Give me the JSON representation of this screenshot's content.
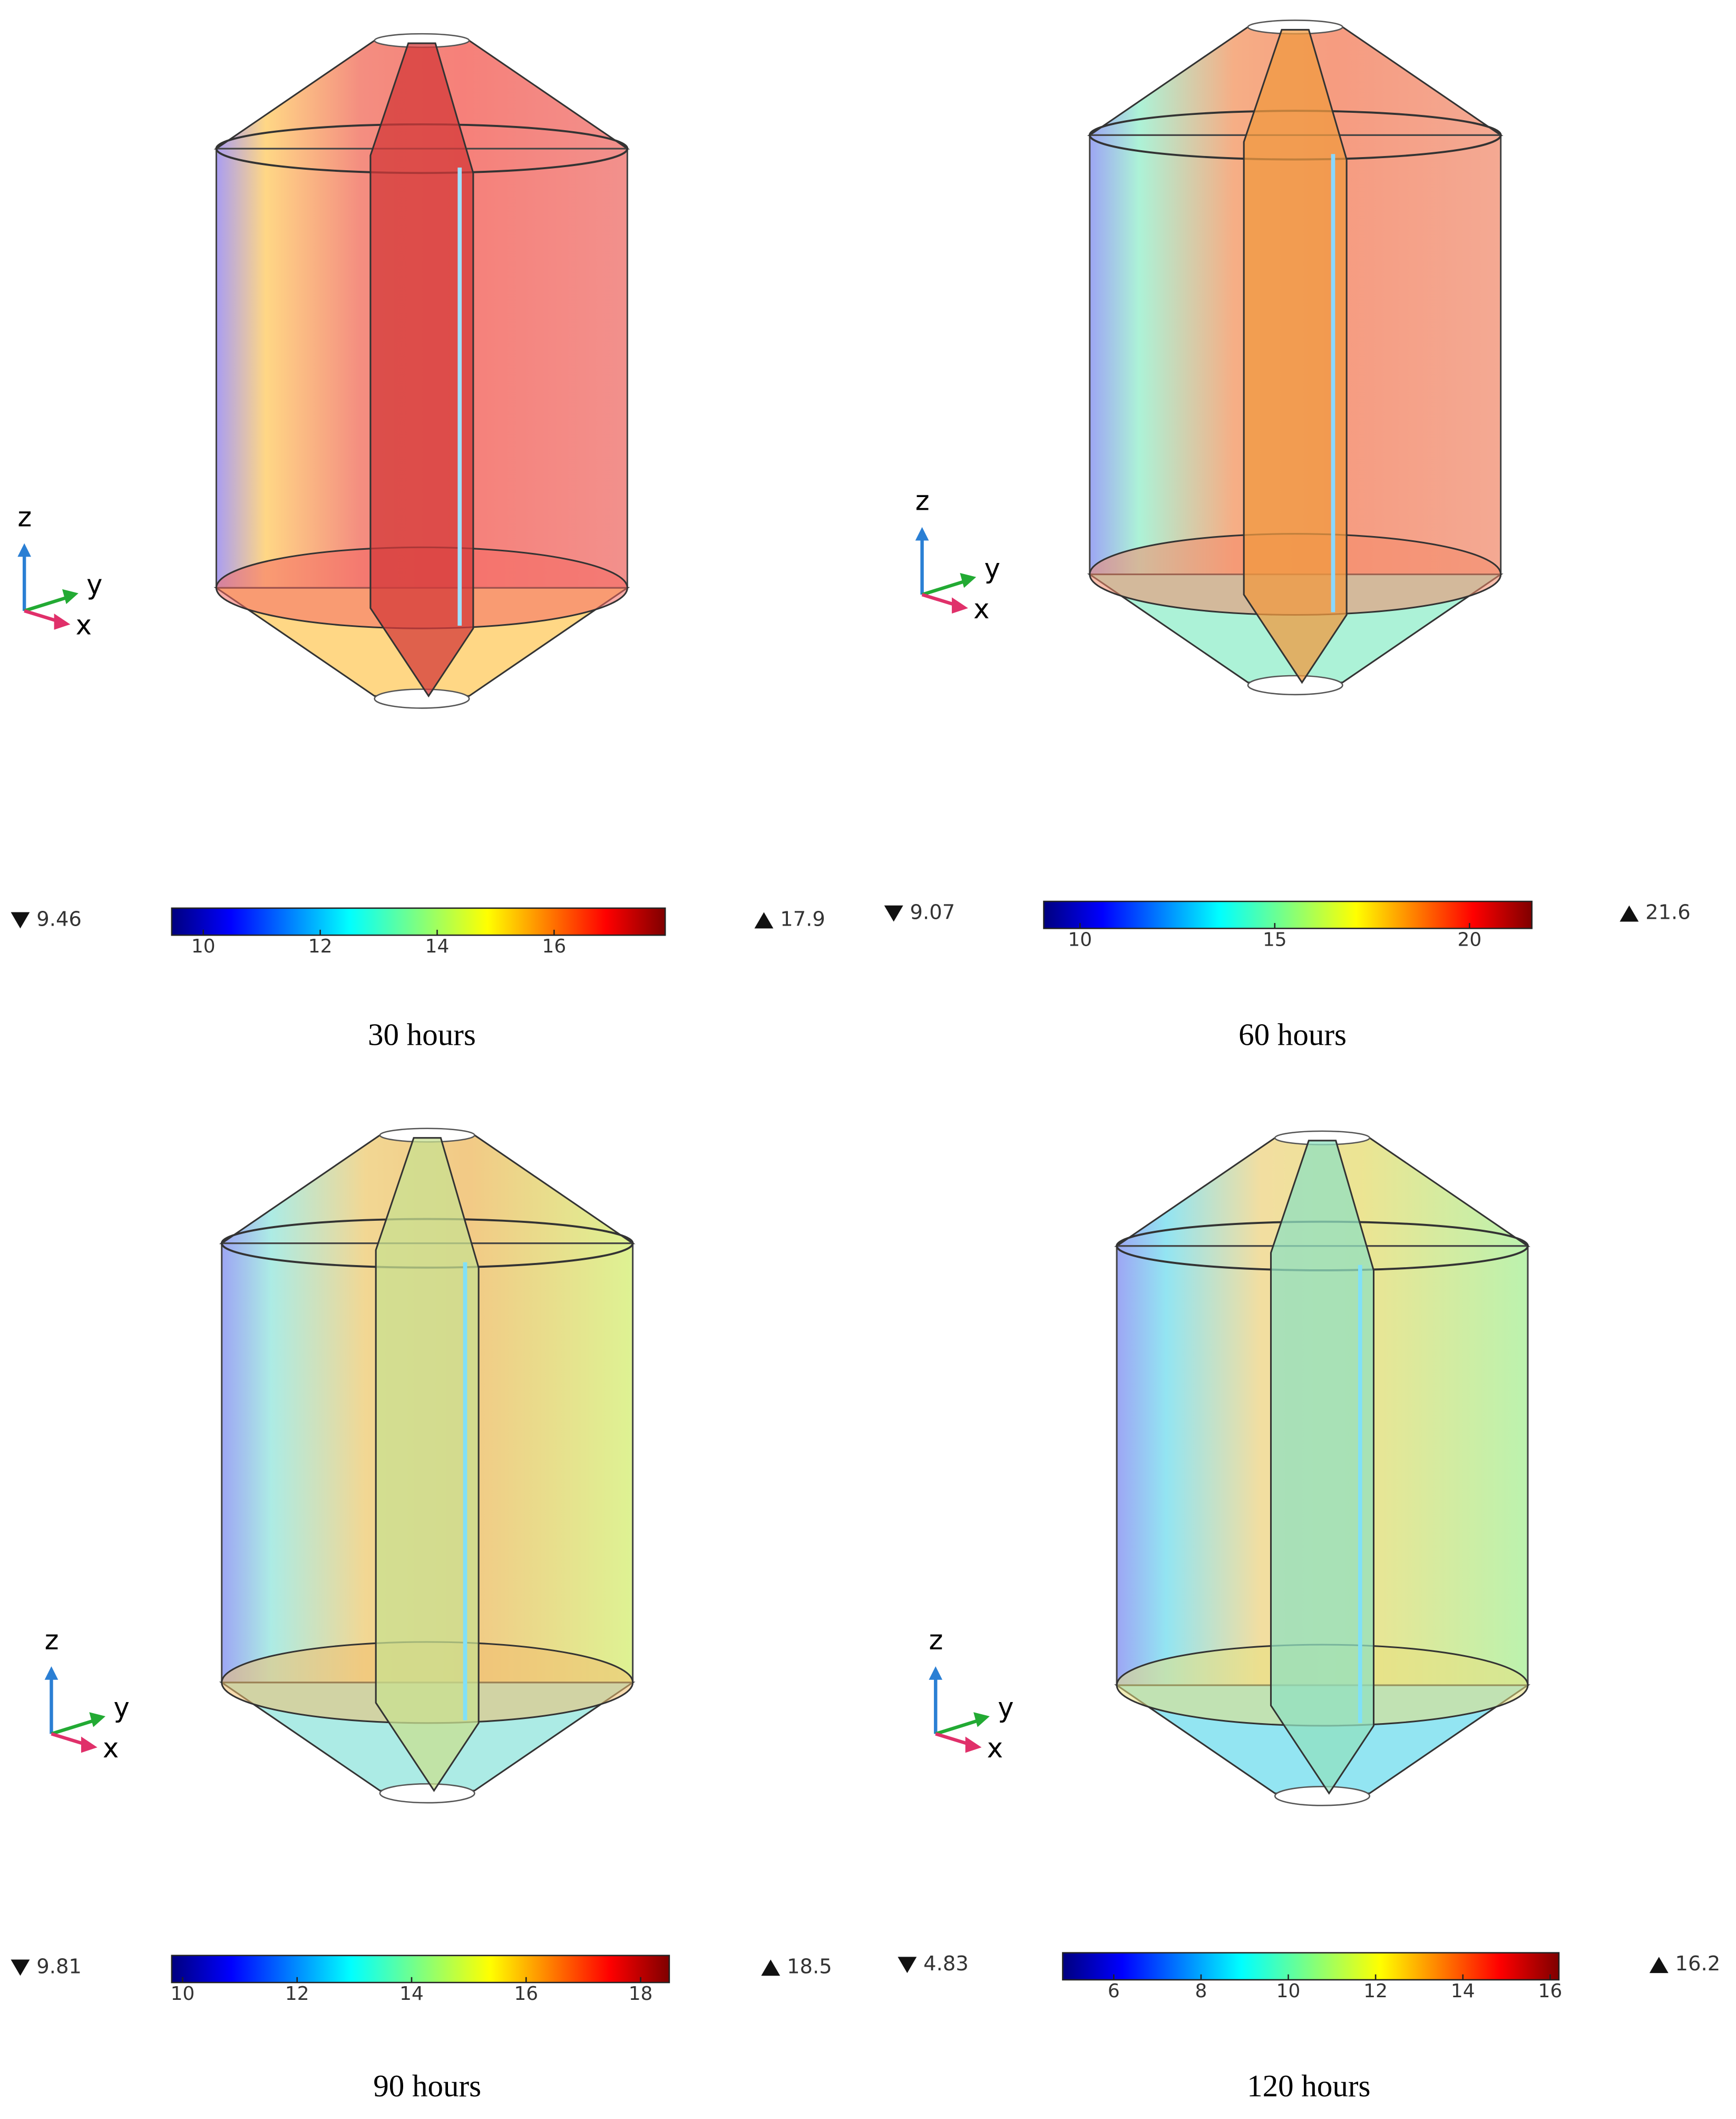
{
  "axes_labels": {
    "x": "x",
    "y": "y",
    "z": "z"
  },
  "panels": [
    {
      "caption": "30 hours",
      "min": 9.46,
      "max": 17.9,
      "ticks": [
        10,
        12,
        14,
        16
      ]
    },
    {
      "caption": "60 hours",
      "min": 9.07,
      "max": 21.6,
      "ticks": [
        10,
        15,
        20
      ]
    },
    {
      "caption": "90 hours",
      "min": 9.81,
      "max": 18.5,
      "ticks": [
        10,
        12,
        14,
        16,
        18
      ]
    },
    {
      "caption": "120 hours",
      "min": 4.83,
      "max": 16.2,
      "ticks": [
        6,
        8,
        10,
        12,
        14,
        16
      ]
    }
  ]
}
